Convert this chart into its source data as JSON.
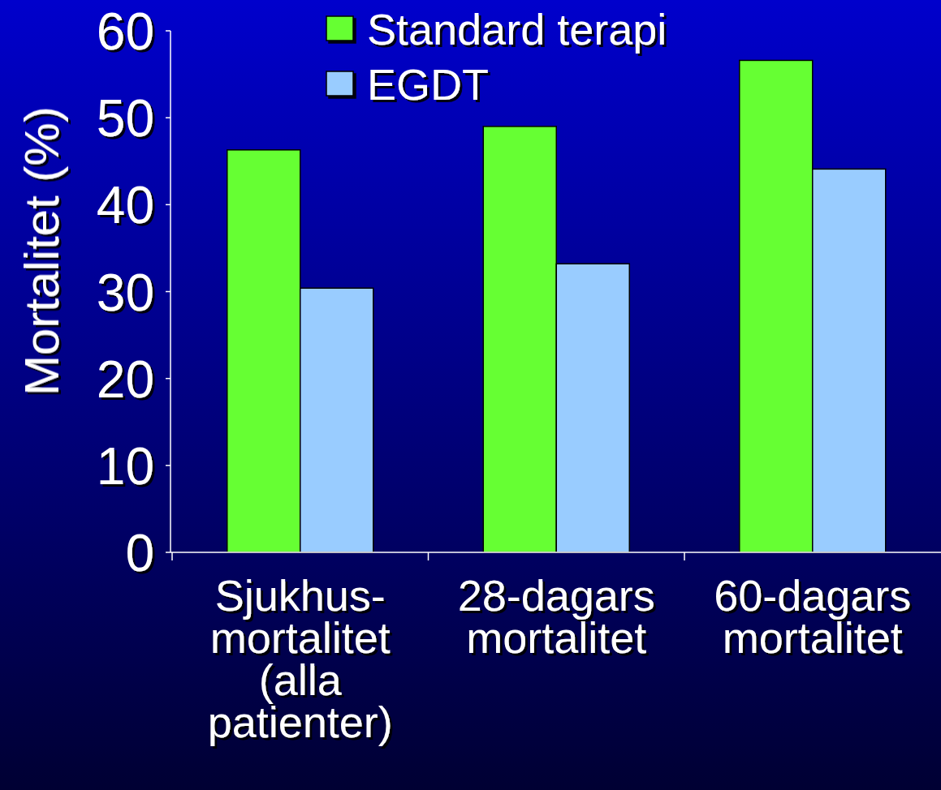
{
  "chart_data": {
    "type": "bar",
    "ylabel": "Mortalitet (%)",
    "categories": [
      "Sjukhus-mortalitet (alla patienter)",
      "28-dagars mortalitet",
      "60-dagars mortalitet"
    ],
    "series": [
      {
        "name": "Standard terapi",
        "color": "#66ff33",
        "values": [
          46.3,
          49.0,
          56.6
        ]
      },
      {
        "name": "EGDT",
        "color": "#99ccff",
        "values": [
          30.4,
          33.2,
          44.1
        ]
      }
    ],
    "ylim": [
      0,
      60
    ],
    "yticks": [
      0,
      10,
      20,
      30,
      40,
      50,
      60
    ],
    "grid": false,
    "legend": "top"
  }
}
